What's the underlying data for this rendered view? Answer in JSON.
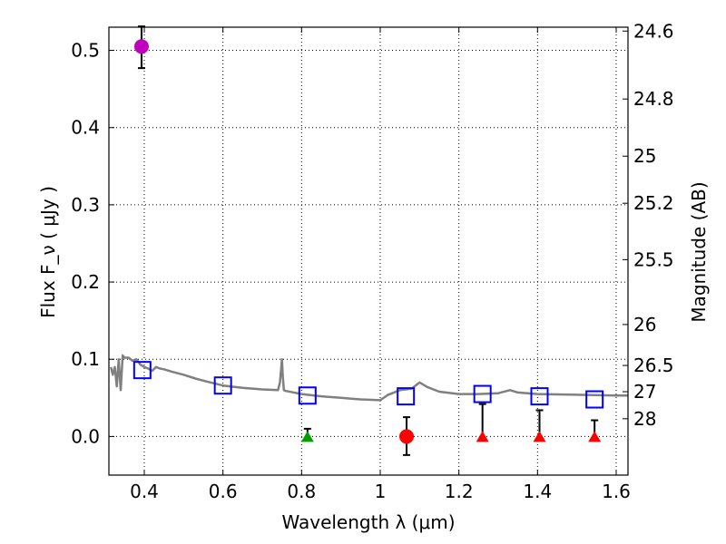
{
  "chart_data": {
    "type": "scatter",
    "xlabel": "Wavelength  λ (μm)",
    "ylabel": "Flux  F_ν  ( μJy )",
    "ylabel_right": "Magnitude (AB)",
    "xlim": [
      0.31,
      1.63
    ],
    "ylim": [
      -0.05,
      0.53
    ],
    "grid": true,
    "x_ticks": [
      {
        "value": 0.4,
        "label": "0.4"
      },
      {
        "value": 0.6,
        "label": "0.6"
      },
      {
        "value": 0.8,
        "label": "0.8"
      },
      {
        "value": 1.0,
        "label": "1"
      },
      {
        "value": 1.2,
        "label": "1.2"
      },
      {
        "value": 1.4,
        "label": "1.4"
      },
      {
        "value": 1.6,
        "label": "1.6"
      }
    ],
    "y_ticks": [
      {
        "value": 0.0,
        "label": "0.0"
      },
      {
        "value": 0.1,
        "label": "0.1"
      },
      {
        "value": 0.2,
        "label": "0.2"
      },
      {
        "value": 0.3,
        "label": "0.3"
      },
      {
        "value": 0.4,
        "label": "0.4"
      },
      {
        "value": 0.5,
        "label": "0.5"
      }
    ],
    "magnitude_ticks": [
      {
        "flux": 0.525,
        "label": "24.6"
      },
      {
        "flux": 0.437,
        "label": "24.8"
      },
      {
        "flux": 0.363,
        "label": "25"
      },
      {
        "flux": 0.302,
        "label": "25.2"
      },
      {
        "flux": 0.229,
        "label": "25.5"
      },
      {
        "flux": 0.145,
        "label": "26"
      },
      {
        "flux": 0.092,
        "label": "26.5"
      },
      {
        "flux": 0.058,
        "label": "27"
      },
      {
        "flux": 0.023,
        "label": "28"
      }
    ],
    "model_sed": {
      "name": "model spectrum",
      "color": "#808080",
      "x": [
        0.315,
        0.32,
        0.325,
        0.33,
        0.335,
        0.34,
        0.345,
        0.35,
        0.36,
        0.37,
        0.38,
        0.39,
        0.4,
        0.41,
        0.42,
        0.43,
        0.44,
        0.45,
        0.47,
        0.5,
        0.53,
        0.56,
        0.6,
        0.65,
        0.7,
        0.74,
        0.745,
        0.75,
        0.752,
        0.755,
        0.76,
        0.8,
        0.85,
        0.9,
        0.95,
        1.0,
        1.02,
        1.05,
        1.08,
        1.1,
        1.12,
        1.15,
        1.2,
        1.25,
        1.3,
        1.33,
        1.35,
        1.4,
        1.5,
        1.6,
        1.63
      ],
      "y": [
        0.09,
        0.08,
        0.09,
        0.065,
        0.1,
        0.06,
        0.105,
        0.102,
        0.102,
        0.098,
        0.1,
        0.093,
        0.09,
        0.088,
        0.085,
        0.09,
        0.088,
        0.087,
        0.084,
        0.08,
        0.075,
        0.071,
        0.066,
        0.063,
        0.061,
        0.06,
        0.07,
        0.1,
        0.08,
        0.06,
        0.059,
        0.055,
        0.052,
        0.05,
        0.048,
        0.047,
        0.054,
        0.06,
        0.062,
        0.07,
        0.064,
        0.058,
        0.055,
        0.055,
        0.056,
        0.06,
        0.057,
        0.055,
        0.054,
        0.053,
        0.053
      ]
    },
    "series": [
      {
        "name": "model photometry",
        "marker": "square-open",
        "color": "#0000ff",
        "x": [
          0.395,
          0.6,
          0.815,
          1.065,
          1.26,
          1.405,
          1.545
        ],
        "y": [
          0.086,
          0.066,
          0.053,
          0.052,
          0.055,
          0.052,
          0.048
        ]
      },
      {
        "name": "detection (magenta)",
        "marker": "circle",
        "color": "#bf00bf",
        "x": [
          0.393
        ],
        "y": [
          0.505
        ],
        "err_low": [
          0.477
        ],
        "err_high": [
          0.531
        ]
      },
      {
        "name": "detection (red)",
        "marker": "circle",
        "color": "#ff0000",
        "x": [
          1.067
        ],
        "y": [
          0.0
        ],
        "err_low": [
          -0.024
        ],
        "err_high": [
          0.025
        ]
      },
      {
        "name": "non-detection (green)",
        "marker": "triangle",
        "color": "#00a000",
        "x": [
          0.815
        ],
        "y": [
          0.0
        ],
        "err_low": [
          0.0
        ],
        "err_high": [
          0.01
        ]
      },
      {
        "name": "non-detection (red)",
        "marker": "triangle",
        "color": "#ff0000",
        "x": [
          1.26,
          1.405,
          1.545
        ],
        "y": [
          0.0,
          0.0,
          0.0
        ],
        "err_low": [
          0.0,
          0.0,
          0.0
        ],
        "err_high": [
          0.042,
          0.034,
          0.021
        ]
      }
    ]
  }
}
